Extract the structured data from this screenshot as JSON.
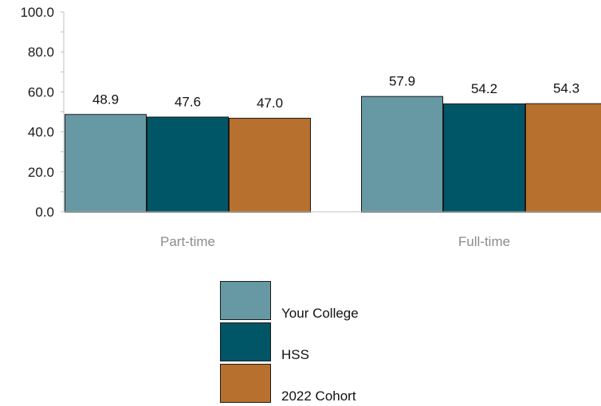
{
  "chart_data": {
    "type": "bar",
    "title": "",
    "xlabel": "",
    "ylabel": "",
    "categories": [
      "Part-time",
      "Full-time"
    ],
    "series": [
      {
        "name": "Your College",
        "color": "#6699a3",
        "values": [
          48.9,
          57.9
        ]
      },
      {
        "name": "HSS",
        "color": "#005566",
        "values": [
          47.6,
          54.2
        ]
      },
      {
        "name": "2022 Cohort",
        "color": "#b8702e",
        "values": [
          47.0,
          54.3
        ]
      }
    ],
    "data_labels": [
      [
        "48.9",
        "57.9"
      ],
      [
        "47.6",
        "54.2"
      ],
      [
        "47.0",
        "54.3"
      ]
    ],
    "ylim": [
      0,
      100
    ],
    "y_ticks": [
      0,
      20,
      40,
      60,
      80,
      100
    ],
    "y_tick_labels": [
      "0.0",
      "20.0",
      "40.0",
      "60.0",
      "80.0",
      "100.0"
    ],
    "grid": false,
    "legend_position": "bottom"
  }
}
